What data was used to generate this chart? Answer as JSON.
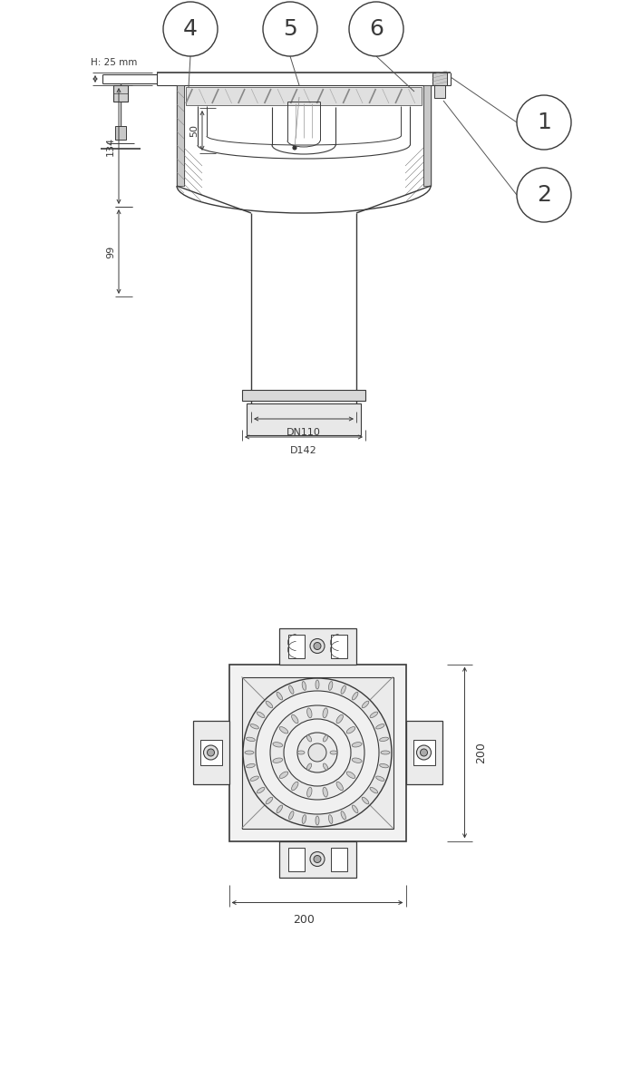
{
  "bg_color": "#ffffff",
  "line_color": "#3a3a3a",
  "dim_color": "#3a3a3a",
  "dims": {
    "H25": "H: 25 mm",
    "134": "134",
    "99": "99",
    "50": "50",
    "DN110": "DN110",
    "D142": "D142",
    "200h": "200",
    "200w": "200"
  }
}
